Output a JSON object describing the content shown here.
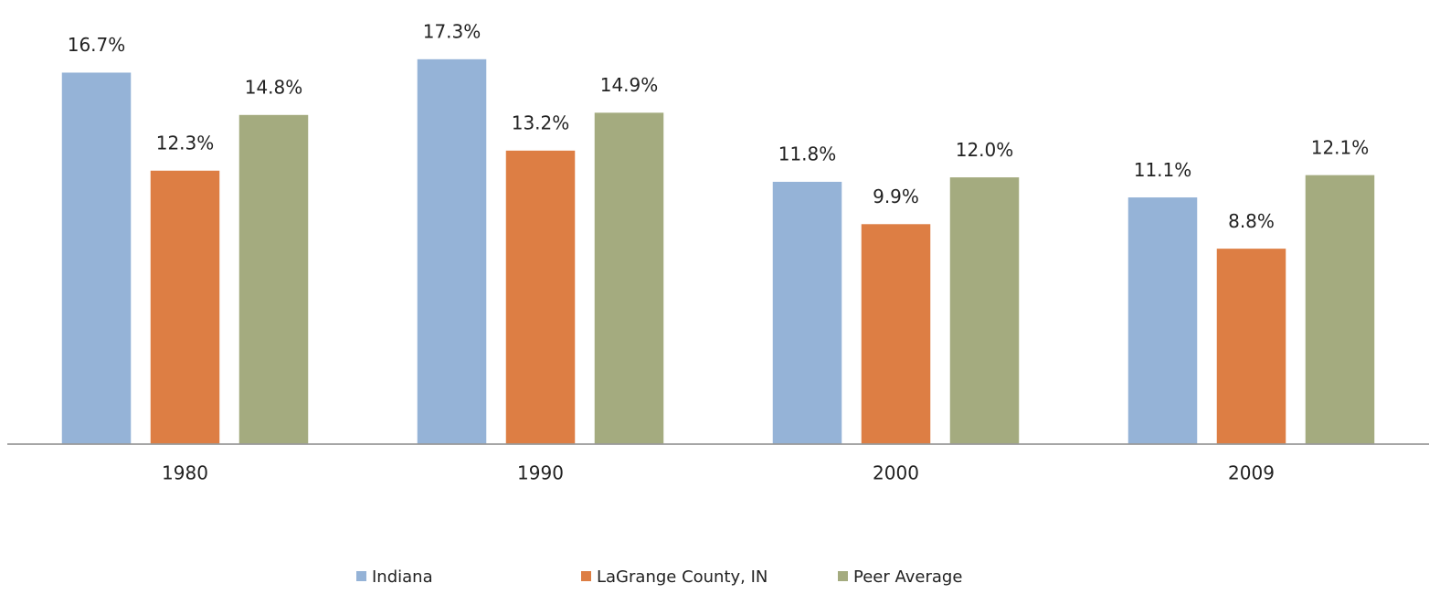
{
  "chart_data": {
    "type": "bar",
    "categories": [
      "1980",
      "1990",
      "2000",
      "2009"
    ],
    "series": [
      {
        "name": "Indiana",
        "color": "#95b3d7",
        "values": [
          16.7,
          17.3,
          11.8,
          11.1
        ],
        "value_labels": [
          "16.7%",
          "17.3%",
          "11.8%",
          "11.1%"
        ]
      },
      {
        "name": "LaGrange County, IN",
        "color": "#dd7e44",
        "values": [
          12.3,
          13.2,
          9.9,
          8.8
        ],
        "value_labels": [
          "12.3%",
          "13.2%",
          "9.9%",
          "8.8%"
        ]
      },
      {
        "name": "Peer Average",
        "color": "#a4ab7f",
        "values": [
          14.8,
          14.9,
          12.0,
          12.1
        ],
        "value_labels": [
          "14.8%",
          "14.9%",
          "12.0%",
          "12.1%"
        ]
      }
    ],
    "ylim": [
      0,
      18
    ],
    "legend": "bottom"
  }
}
